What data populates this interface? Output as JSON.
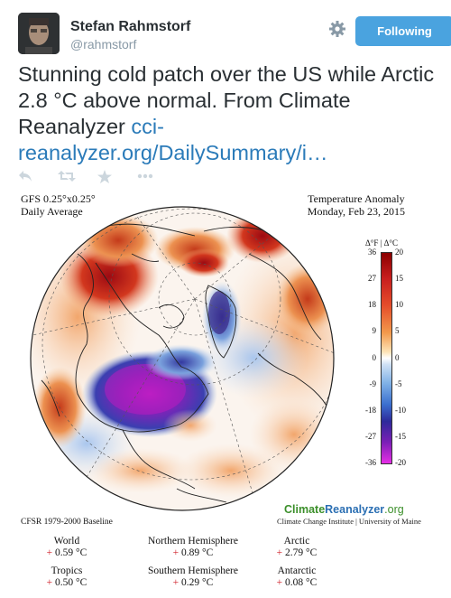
{
  "user": {
    "name": "Stefan Rahmstorf",
    "handle": "@rahmstorf"
  },
  "follow_button": {
    "label": "Following"
  },
  "tweet": {
    "text": "Stunning cold patch over the US while Arctic 2.8 °C above normal. From Climate Reanalyzer ",
    "link": "cci-reanalyzer.org/DailySummary/i…"
  },
  "icons": {
    "gear": "gear-icon",
    "reply": "reply-icon",
    "retweet": "retweet-icon",
    "favorite": "star-icon",
    "more": "more-icon"
  },
  "map": {
    "model_line1": "GFS 0.25°x0.25°",
    "model_line2": "Daily Average",
    "title_line1": "Temperature Anomaly",
    "title_line2": "Monday, Feb 23, 2015",
    "colorbar_header": "Δ°F | Δ°C",
    "ticks_f": [
      "36",
      "27",
      "18",
      "9",
      "0",
      "-9",
      "-18",
      "-27",
      "-36"
    ],
    "ticks_c": [
      "20",
      "15",
      "10",
      "5",
      "0",
      "-5",
      "-10",
      "-15",
      "-20"
    ],
    "brand_a": "Climate",
    "brand_b": "Reanalyzer",
    "brand_c": ".org",
    "brand_sub": "Climate Change Institute | University of Maine",
    "baseline": "CFSR 1979-2000 Baseline"
  },
  "stats": [
    {
      "label": "World",
      "sign": "+",
      "value": "0.59 °C"
    },
    {
      "label": "Northern Hemisphere",
      "sign": "+",
      "value": "0.89 °C"
    },
    {
      "label": "Arctic",
      "sign": "+",
      "value": "2.79 °C"
    },
    {
      "label": "Tropics",
      "sign": "+",
      "value": "0.50 °C"
    },
    {
      "label": "Southern Hemisphere",
      "sign": "+",
      "value": "0.29 °C"
    },
    {
      "label": "Antarctic",
      "sign": "+",
      "value": "0.08 °C"
    }
  ],
  "colors": {
    "accent": "#4aa3df",
    "link": "#2b7bb9",
    "warm": "#d0202a",
    "cold": "#6a1b9a"
  }
}
